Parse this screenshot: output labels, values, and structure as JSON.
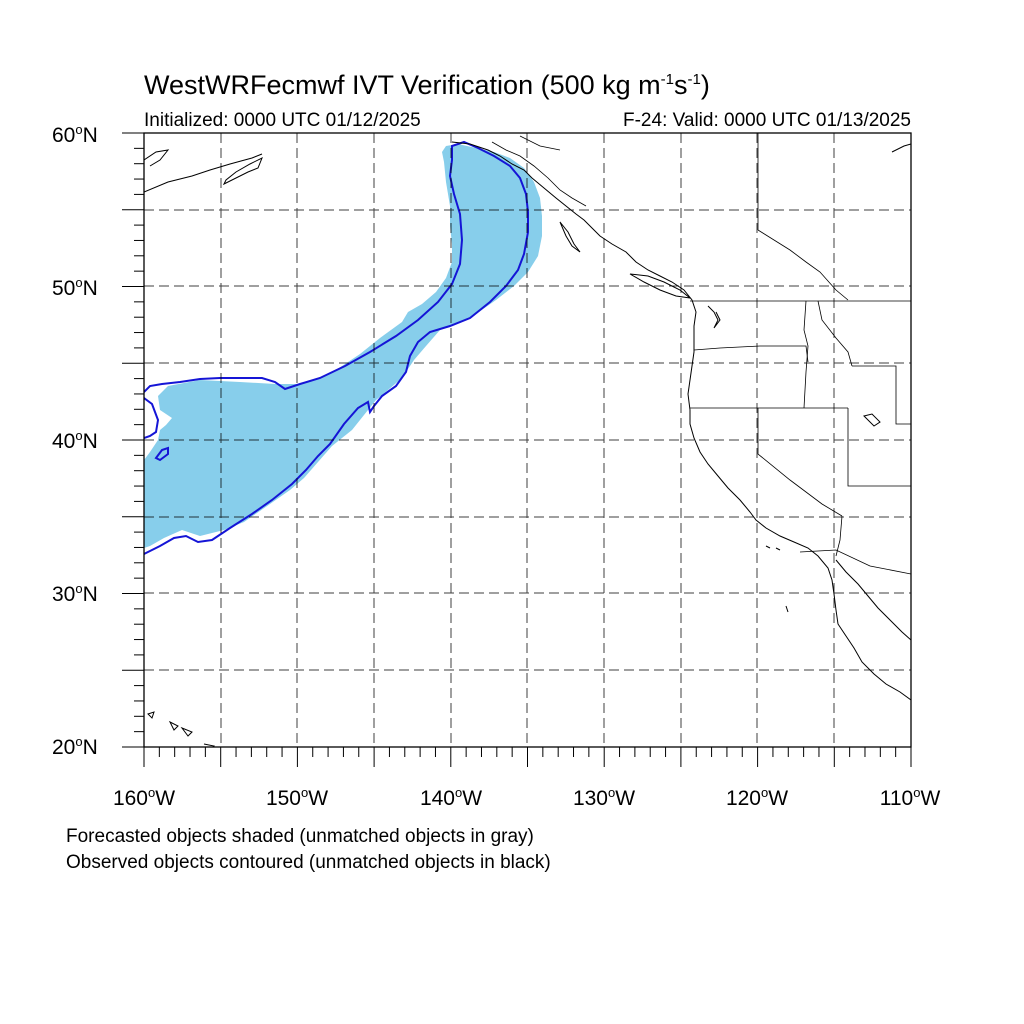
{
  "title": {
    "prefix": "WestWRFecmwf IVT Verification (500 kg m",
    "exp1": "-1",
    "mid": "s",
    "exp2": "-1",
    "suffix": ")"
  },
  "initialized": "Initialized: 0000 UTC 01/12/2025",
  "valid": "F-24: Valid: 0000 UTC 01/13/2025",
  "lat_labels": [
    {
      "num": "60",
      "hemi": "N"
    },
    {
      "num": "50",
      "hemi": "N"
    },
    {
      "num": "40",
      "hemi": "N"
    },
    {
      "num": "30",
      "hemi": "N"
    },
    {
      "num": "20",
      "hemi": "N"
    }
  ],
  "lon_labels": [
    {
      "num": "160",
      "hemi": "W"
    },
    {
      "num": "150",
      "hemi": "W"
    },
    {
      "num": "140",
      "hemi": "W"
    },
    {
      "num": "130",
      "hemi": "W"
    },
    {
      "num": "120",
      "hemi": "W"
    },
    {
      "num": "110",
      "hemi": "W"
    }
  ],
  "degree_symbol": "o",
  "map_extent": {
    "lon_min": -160,
    "lon_max": -110,
    "lat_min": 20,
    "lat_max": 60
  },
  "colors": {
    "forecast_fill": "#87ceeb",
    "observed_contour": "#1515d6",
    "grid": "#000000"
  },
  "caption": {
    "line1": "Forecasted objects shaded (unmatched objects in gray)",
    "line2": "Observed objects contoured (unmatched objects in black)"
  }
}
